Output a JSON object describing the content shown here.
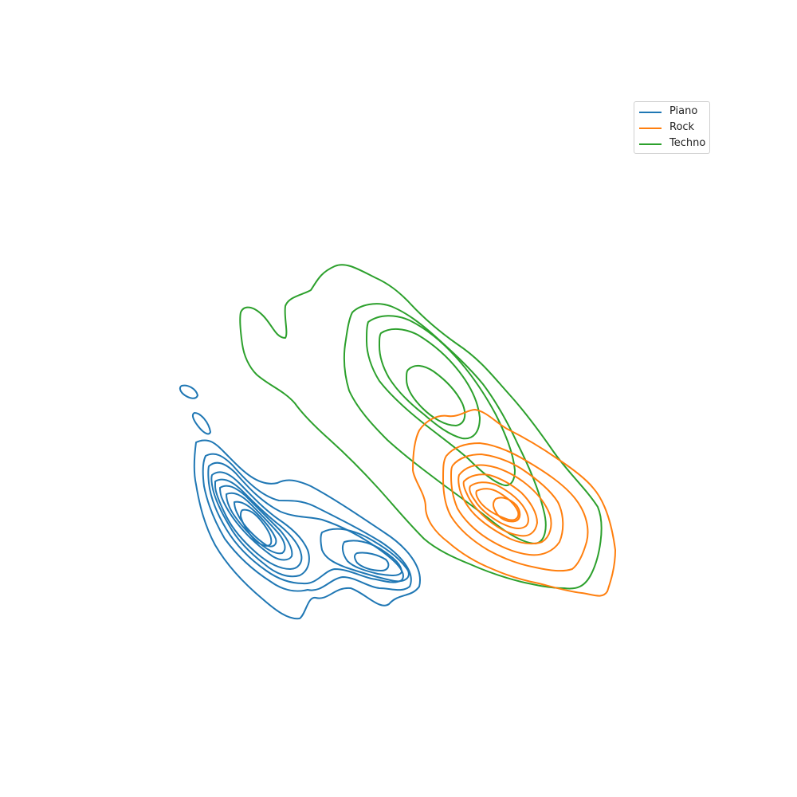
{
  "chart_data": {
    "type": "kde-contour",
    "title": "",
    "xlabel": "",
    "ylabel": "",
    "axes_visible": false,
    "grid": false,
    "legend_position": "top-right",
    "series": [
      {
        "name": "Piano",
        "color": "#1f77b4",
        "modes": [
          {
            "center": [
              0.0,
              0.0
            ],
            "weight": 1.0
          },
          {
            "center": [
              1.4,
              -0.35
            ],
            "weight": 0.55
          }
        ],
        "contour_levels": 10
      },
      {
        "name": "Rock",
        "color": "#ff7f0e",
        "modes": [
          {
            "center": [
              3.2,
              0.1
            ],
            "weight": 1.0
          }
        ],
        "contour_levels": 10
      },
      {
        "name": "Techno",
        "color": "#2ca02c",
        "modes": [
          {
            "center": [
              2.2,
              1.6
            ],
            "weight": 1.0
          }
        ],
        "contour_levels": 5
      }
    ]
  }
}
